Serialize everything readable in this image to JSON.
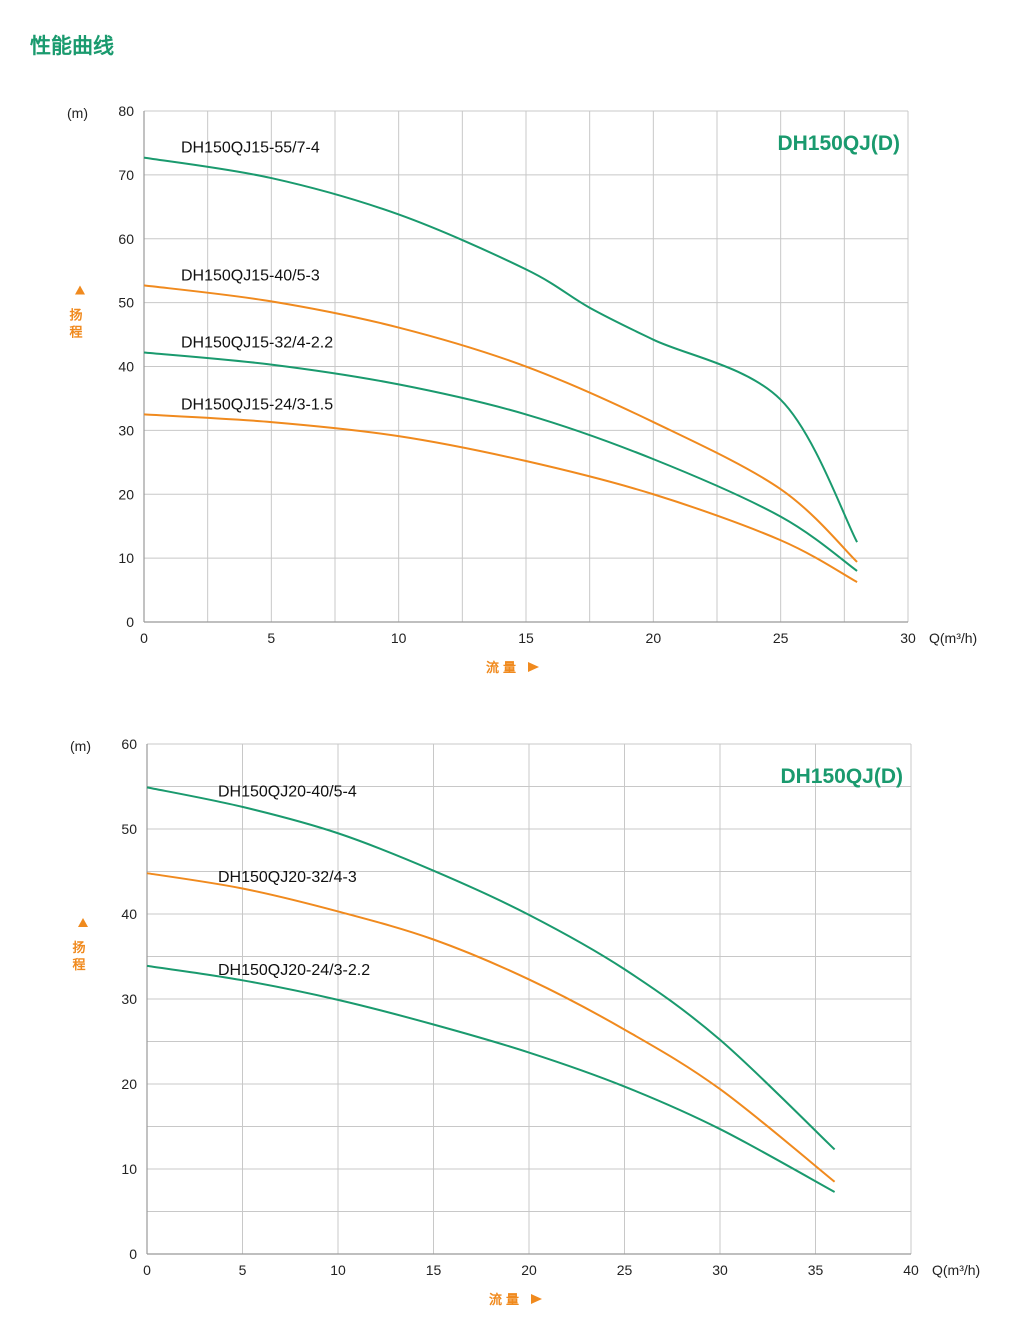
{
  "page_title": "性能曲线",
  "colors": {
    "green": "#1a9a6e",
    "orange": "#f08a1e",
    "grid": "#c8c8c8"
  },
  "chart_data": [
    {
      "type": "line",
      "title": "DH150QJ(D)",
      "ylabel": "扬程",
      "yunit": "(m)",
      "xlabel": "流量",
      "xunit": "Q(m³/h)",
      "xlim": [
        0,
        30
      ],
      "ylim": [
        0,
        80
      ],
      "xticks": [
        0,
        5,
        10,
        15,
        20,
        25,
        30
      ],
      "yticks": [
        0,
        10,
        20,
        30,
        40,
        50,
        60,
        70,
        80
      ],
      "x_grid_step": 2.5,
      "y_grid_step": 10,
      "grid": true,
      "series": [
        {
          "name": "DH150QJ15-55/7-4",
          "color": "green",
          "x": [
            0,
            5,
            10,
            15,
            17.5,
            20,
            25,
            28
          ],
          "y": [
            72.7,
            69.5,
            63.8,
            55.2,
            49.2,
            44.2,
            34.8,
            12.5
          ]
        },
        {
          "name": "DH150QJ15-40/5-3",
          "color": "orange",
          "x": [
            0,
            5,
            10,
            15,
            20,
            25,
            28
          ],
          "y": [
            52.7,
            50.2,
            46.1,
            40.0,
            31.3,
            20.8,
            9.4
          ]
        },
        {
          "name": "DH150QJ15-32/4-2.2",
          "color": "green",
          "x": [
            0,
            5,
            10,
            15,
            20,
            25,
            28
          ],
          "y": [
            42.2,
            40.3,
            37.2,
            32.5,
            25.5,
            16.5,
            8.0
          ]
        },
        {
          "name": "DH150QJ15-24/3-1.5",
          "color": "orange",
          "x": [
            0,
            5,
            10,
            15,
            20,
            25,
            28
          ],
          "y": [
            32.5,
            31.3,
            29.1,
            25.2,
            20.0,
            12.8,
            6.25
          ]
        }
      ]
    },
    {
      "type": "line",
      "title": "DH150QJ(D)",
      "ylabel": "扬程",
      "yunit": "(m)",
      "xlabel": "流量",
      "xunit": "Q(m³/h)",
      "xlim": [
        0,
        40
      ],
      "ylim": [
        0,
        60
      ],
      "xticks": [
        0,
        5,
        10,
        15,
        20,
        25,
        30,
        35,
        40
      ],
      "yticks": [
        0,
        10,
        20,
        30,
        40,
        50,
        60
      ],
      "x_grid_step": 5,
      "y_grid_step": 5,
      "grid": true,
      "series": [
        {
          "name": "DH150QJ20-40/5-4",
          "color": "green",
          "x": [
            0,
            5,
            10,
            15,
            20,
            25,
            30,
            36
          ],
          "y": [
            54.9,
            52.6,
            49.5,
            45.1,
            39.9,
            33.5,
            25.2,
            12.3
          ]
        },
        {
          "name": "DH150QJ20-32/4-3",
          "color": "orange",
          "x": [
            0,
            5,
            10,
            15,
            20,
            25,
            30,
            36
          ],
          "y": [
            44.8,
            43.0,
            40.3,
            37.0,
            32.3,
            26.4,
            19.4,
            8.5
          ]
        },
        {
          "name": "DH150QJ20-24/3-2.2",
          "color": "green",
          "x": [
            0,
            5,
            10,
            15,
            20,
            25,
            30,
            36
          ],
          "y": [
            33.9,
            32.2,
            29.9,
            27.0,
            23.7,
            19.7,
            14.7,
            7.3
          ]
        }
      ]
    }
  ]
}
